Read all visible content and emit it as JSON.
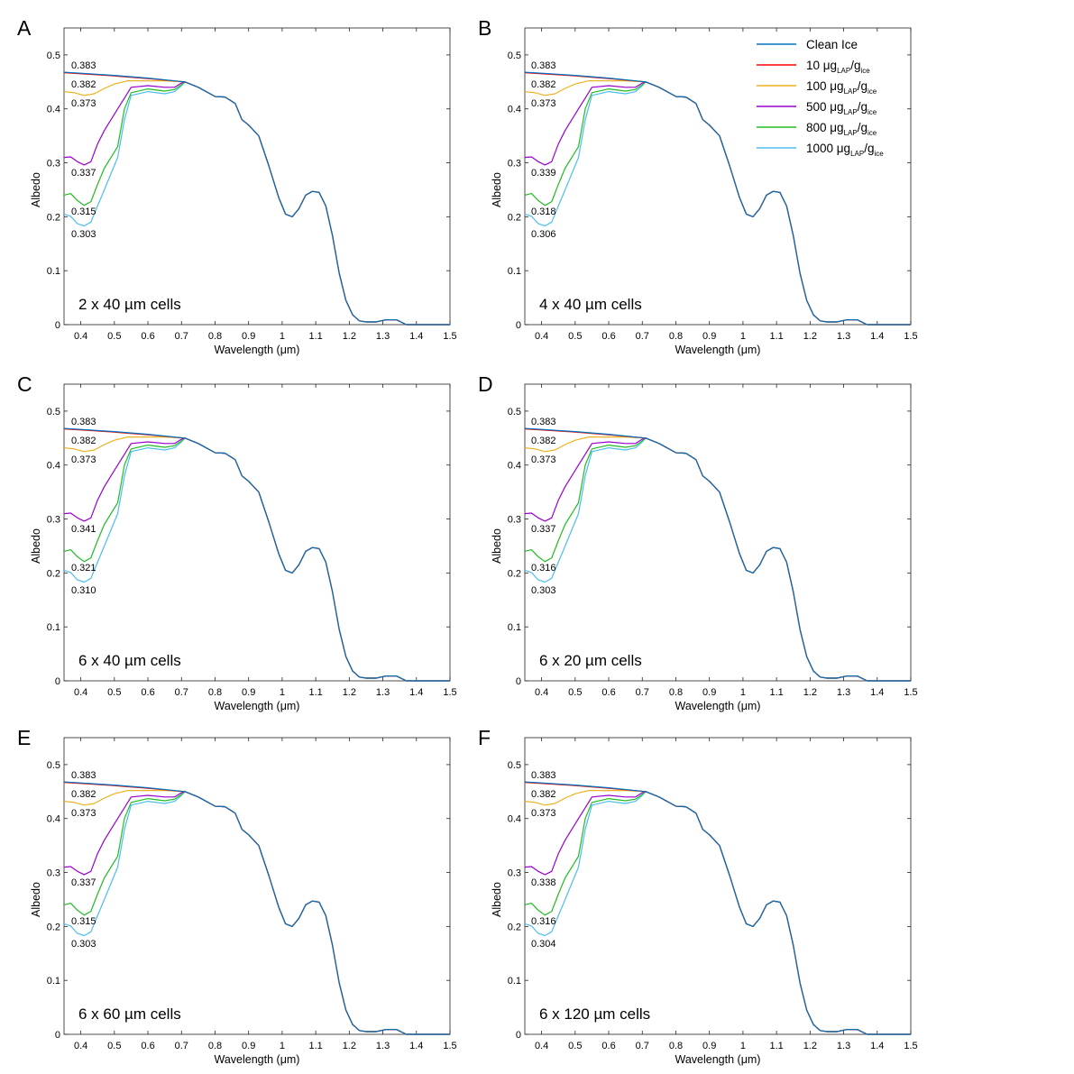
{
  "figure": {
    "panels": [
      {
        "letter": "A",
        "caption": "2 x 40 µm cells",
        "labels": [
          "0.383",
          "0.382",
          "0.373",
          "0.337",
          "0.315",
          "0.303"
        ]
      },
      {
        "letter": "B",
        "caption": "4 x 40 µm cells",
        "labels": [
          "0.383",
          "0.382",
          "0.373",
          "0.339",
          "0.318",
          "0.306"
        ]
      },
      {
        "letter": "C",
        "caption": "6 x 40 µm cells",
        "labels": [
          "0.383",
          "0.382",
          "0.373",
          "0.341",
          "0.321",
          "0.310"
        ]
      },
      {
        "letter": "D",
        "caption": "6 x 20 µm cells",
        "labels": [
          "0.383",
          "0.382",
          "0.373",
          "0.337",
          "0.316",
          "0.303"
        ]
      },
      {
        "letter": "E",
        "caption": "6 x 60 µm cells",
        "labels": [
          "0.383",
          "0.382",
          "0.373",
          "0.337",
          "0.315",
          "0.303"
        ]
      },
      {
        "letter": "F",
        "caption": "6 x 120 µm cells",
        "labels": [
          "0.383",
          "0.382",
          "0.373",
          "0.338",
          "0.316",
          "0.304"
        ]
      }
    ]
  },
  "chart_data": {
    "type": "line",
    "xlabel": "Wavelength (μm)",
    "ylabel": "Albedo",
    "xlim": [
      0.35,
      1.5
    ],
    "ylim": [
      0,
      0.55
    ],
    "xticks": [
      "0.4",
      "0.5",
      "0.6",
      "0.7",
      "0.8",
      "0.9",
      "1",
      "1.1",
      "1.2",
      "1.3",
      "1.4",
      "1.5"
    ],
    "yticks": [
      "0",
      "0.1",
      "0.2",
      "0.3",
      "0.4",
      "0.5"
    ],
    "legend": {
      "placement": "top-right (panel B)",
      "entries": [
        {
          "text": "Clean Ice",
          "color": "#0072BD"
        },
        {
          "main": "10 μg",
          "sub1": "LAP",
          "mid": "/g",
          "sub2": "ice",
          "color": "#ff0000"
        },
        {
          "main": "100 μg",
          "sub1": "LAP",
          "mid": "/g",
          "sub2": "ice",
          "color": "#EDB120"
        },
        {
          "main": "500 μg",
          "sub1": "LAP",
          "mid": "/g",
          "sub2": "ice",
          "color": "#9900cc"
        },
        {
          "main": "800 μg",
          "sub1": "LAP",
          "mid": "/g",
          "sub2": "ice",
          "color": "#22bb22"
        },
        {
          "main": "1000 μg",
          "sub1": "LAP",
          "mid": "/g",
          "sub2": "ice",
          "color": "#4DBEEE"
        }
      ]
    },
    "common_tail": {
      "x": [
        0.71,
        0.75,
        0.8,
        0.83,
        0.86,
        0.88,
        0.9,
        0.93,
        0.96,
        0.99,
        1.01,
        1.03,
        1.05,
        1.07,
        1.09,
        1.11,
        1.13,
        1.15,
        1.17,
        1.19,
        1.21,
        1.23,
        1.25,
        1.28,
        1.31,
        1.34,
        1.37,
        1.5
      ],
      "y": [
        0.45,
        0.44,
        0.423,
        0.422,
        0.41,
        0.38,
        0.37,
        0.35,
        0.295,
        0.235,
        0.205,
        0.2,
        0.215,
        0.24,
        0.247,
        0.245,
        0.22,
        0.165,
        0.095,
        0.045,
        0.018,
        0.007,
        0.005,
        0.005,
        0.009,
        0.009,
        0.0,
        0.0
      ]
    },
    "series": [
      {
        "name": "Clean Ice",
        "color": "#0072BD",
        "x": [
          0.35,
          0.4,
          0.5,
          0.6,
          0.71
        ],
        "y": [
          0.468,
          0.466,
          0.462,
          0.457,
          0.45
        ]
      },
      {
        "name": "10 μg LAP/g ice",
        "color": "#ff0000",
        "x": [
          0.35,
          0.4,
          0.5,
          0.6,
          0.71
        ],
        "y": [
          0.467,
          0.465,
          0.461,
          0.456,
          0.45
        ]
      },
      {
        "name": "100 μg LAP/g ice",
        "color": "#EDB120",
        "x": [
          0.35,
          0.38,
          0.41,
          0.44,
          0.47,
          0.5,
          0.54,
          0.6,
          0.65,
          0.71
        ],
        "y": [
          0.432,
          0.43,
          0.425,
          0.428,
          0.438,
          0.446,
          0.452,
          0.452,
          0.452,
          0.45
        ]
      },
      {
        "name": "500 μg LAP/g ice",
        "color": "#9900cc",
        "x": [
          0.35,
          0.37,
          0.39,
          0.41,
          0.43,
          0.45,
          0.47,
          0.49,
          0.51,
          0.53,
          0.55,
          0.6,
          0.65,
          0.68,
          0.7,
          0.71
        ],
        "y": [
          0.31,
          0.311,
          0.302,
          0.296,
          0.302,
          0.335,
          0.36,
          0.38,
          0.4,
          0.42,
          0.44,
          0.443,
          0.44,
          0.44,
          0.448,
          0.45
        ]
      },
      {
        "name": "800 μg LAP/g ice",
        "color": "#22bb22",
        "x": [
          0.35,
          0.37,
          0.39,
          0.41,
          0.43,
          0.45,
          0.47,
          0.49,
          0.51,
          0.53,
          0.55,
          0.6,
          0.65,
          0.68,
          0.7,
          0.71
        ],
        "y": [
          0.24,
          0.243,
          0.23,
          0.221,
          0.228,
          0.26,
          0.29,
          0.31,
          0.33,
          0.4,
          0.43,
          0.437,
          0.433,
          0.436,
          0.445,
          0.45
        ]
      },
      {
        "name": "1000 μg LAP/g ice",
        "color": "#4DBEEE",
        "x": [
          0.35,
          0.37,
          0.39,
          0.41,
          0.43,
          0.45,
          0.47,
          0.49,
          0.51,
          0.53,
          0.55,
          0.6,
          0.65,
          0.68,
          0.7,
          0.71
        ],
        "y": [
          0.205,
          0.201,
          0.187,
          0.183,
          0.19,
          0.22,
          0.25,
          0.28,
          0.31,
          0.38,
          0.425,
          0.432,
          0.428,
          0.432,
          0.443,
          0.45
        ]
      }
    ]
  }
}
